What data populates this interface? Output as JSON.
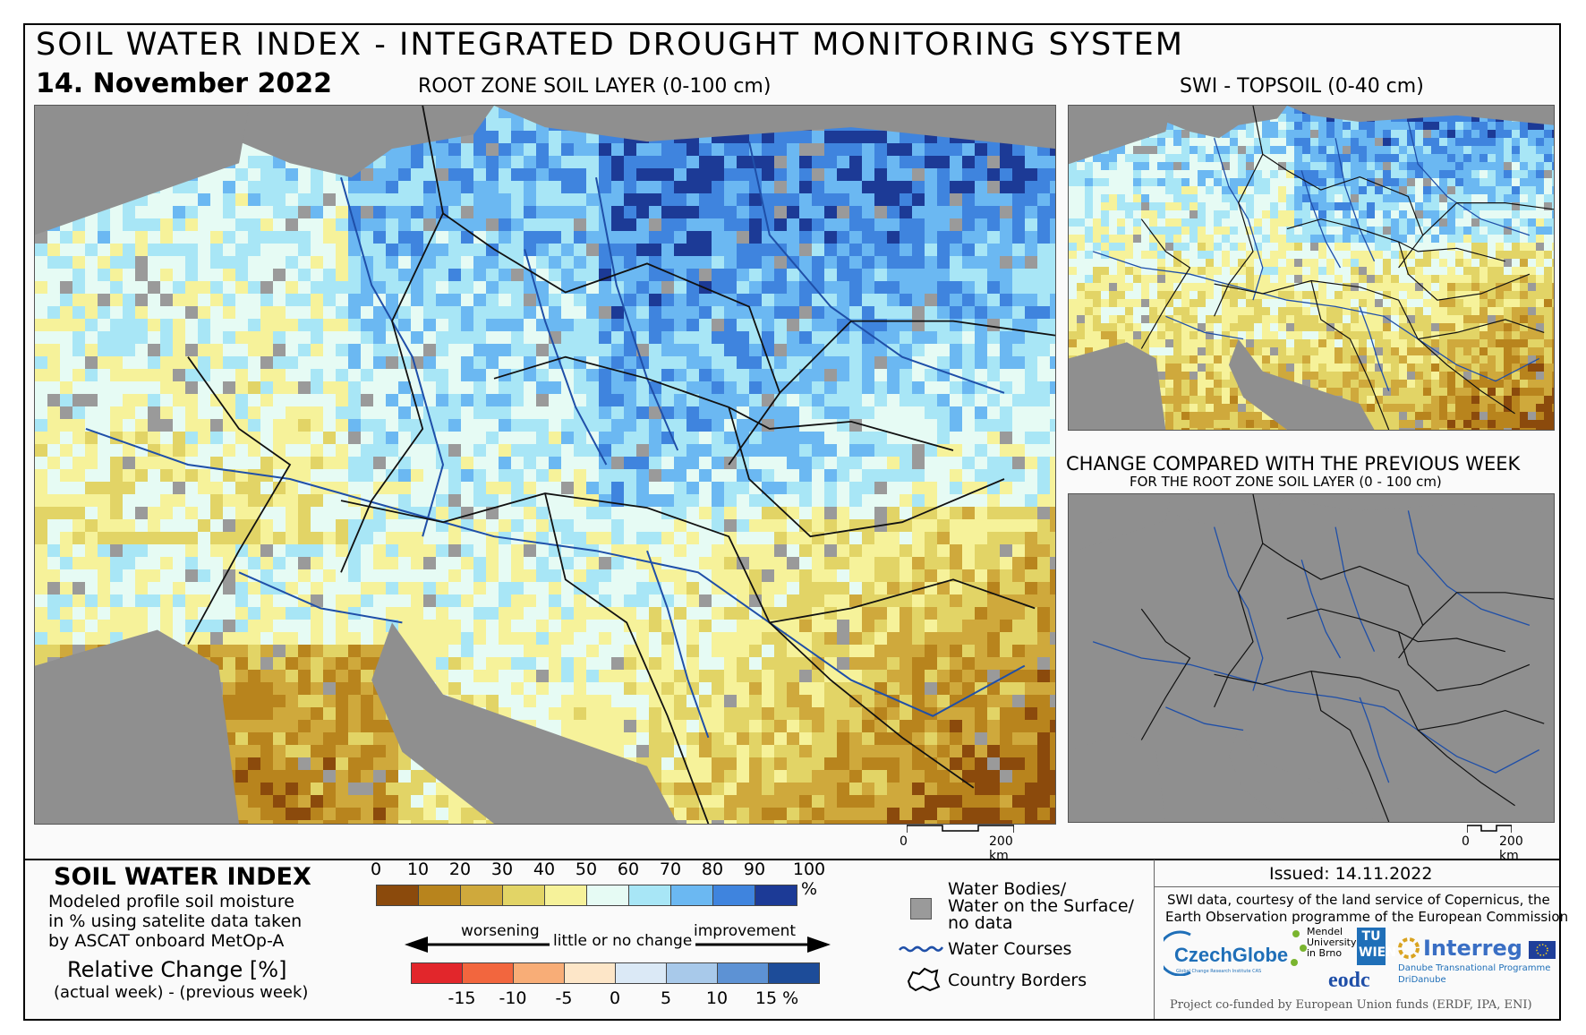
{
  "header": {
    "title": "SOIL WATER INDEX - INTEGRATED DROUGHT MONITORING SYSTEM",
    "date": "14. November 2022",
    "main_map_label": "ROOT ZONE SOIL LAYER (0-100 cm)",
    "topsoil_label": "SWI - TOPSOIL (0-40 cm)",
    "change_title": "CHANGE COMPARED WITH THE PREVIOUS WEEK",
    "change_subtitle": "FOR THE ROOT ZONE SOIL LAYER (0 - 100 cm)"
  },
  "scale": {
    "main_left": "0",
    "main_right": "200 km",
    "small_left": "0",
    "small_right": "200 km"
  },
  "legend": {
    "swi_title": "SOIL WATER INDEX",
    "swi_desc": "Modeled profile soil moisture\nin % using satelite data taken\nby ASCAT onboard MetOp-A",
    "swi_ticks": [
      "0",
      "10",
      "20",
      "30",
      "40",
      "50",
      "60",
      "70",
      "80",
      "90",
      "100 %"
    ],
    "swi_colors": [
      "#8b4a0c",
      "#b8841d",
      "#cfa93c",
      "#e2d466",
      "#f6f29a",
      "#e6fbf4",
      "#a8e6f6",
      "#6bb8f2",
      "#3f84de",
      "#1c3a96"
    ],
    "rel_title": "Relative Change [%]",
    "rel_desc": "(actual week) - (previous week)",
    "worsening": "worsening",
    "little_change": "little or no change",
    "improvement": "improvement",
    "rel_ticks": [
      "-15",
      "-10",
      "-5",
      "0",
      "5",
      "10",
      "15 %"
    ],
    "rel_colors": [
      "#e2262b",
      "#f2663e",
      "#f8ad77",
      "#fde6c8",
      "#dbe9f6",
      "#a8c9ea",
      "#5d92d4",
      "#1d4c99"
    ],
    "water_bodies": "Water Bodies/\nWater on the Surface/\nno data",
    "water_courses": "Water Courses",
    "country_borders": "Country Borders",
    "nodata_color": "#9a9a9a"
  },
  "credits": {
    "issued": "Issued: 14.11.2022",
    "line1": "SWI data, courtesy of the land service of Copernicus, the",
    "line2": "Earth Observation programme of the European Commission",
    "funded": "Project co-funded by European Union funds (ERDF, IPA, ENI)",
    "czechglobe": "CzechGlobe",
    "czechglobe_sub": "Global Change Research Institute CAS",
    "mendel": "Mendel\nUniversity\nin Brno",
    "tu": "TU\nWIEN",
    "eodc": "eodc",
    "interreg": "Interreg",
    "interreg_sub1": "Danube Transnational Programme",
    "interreg_sub2": "DriDanube"
  }
}
